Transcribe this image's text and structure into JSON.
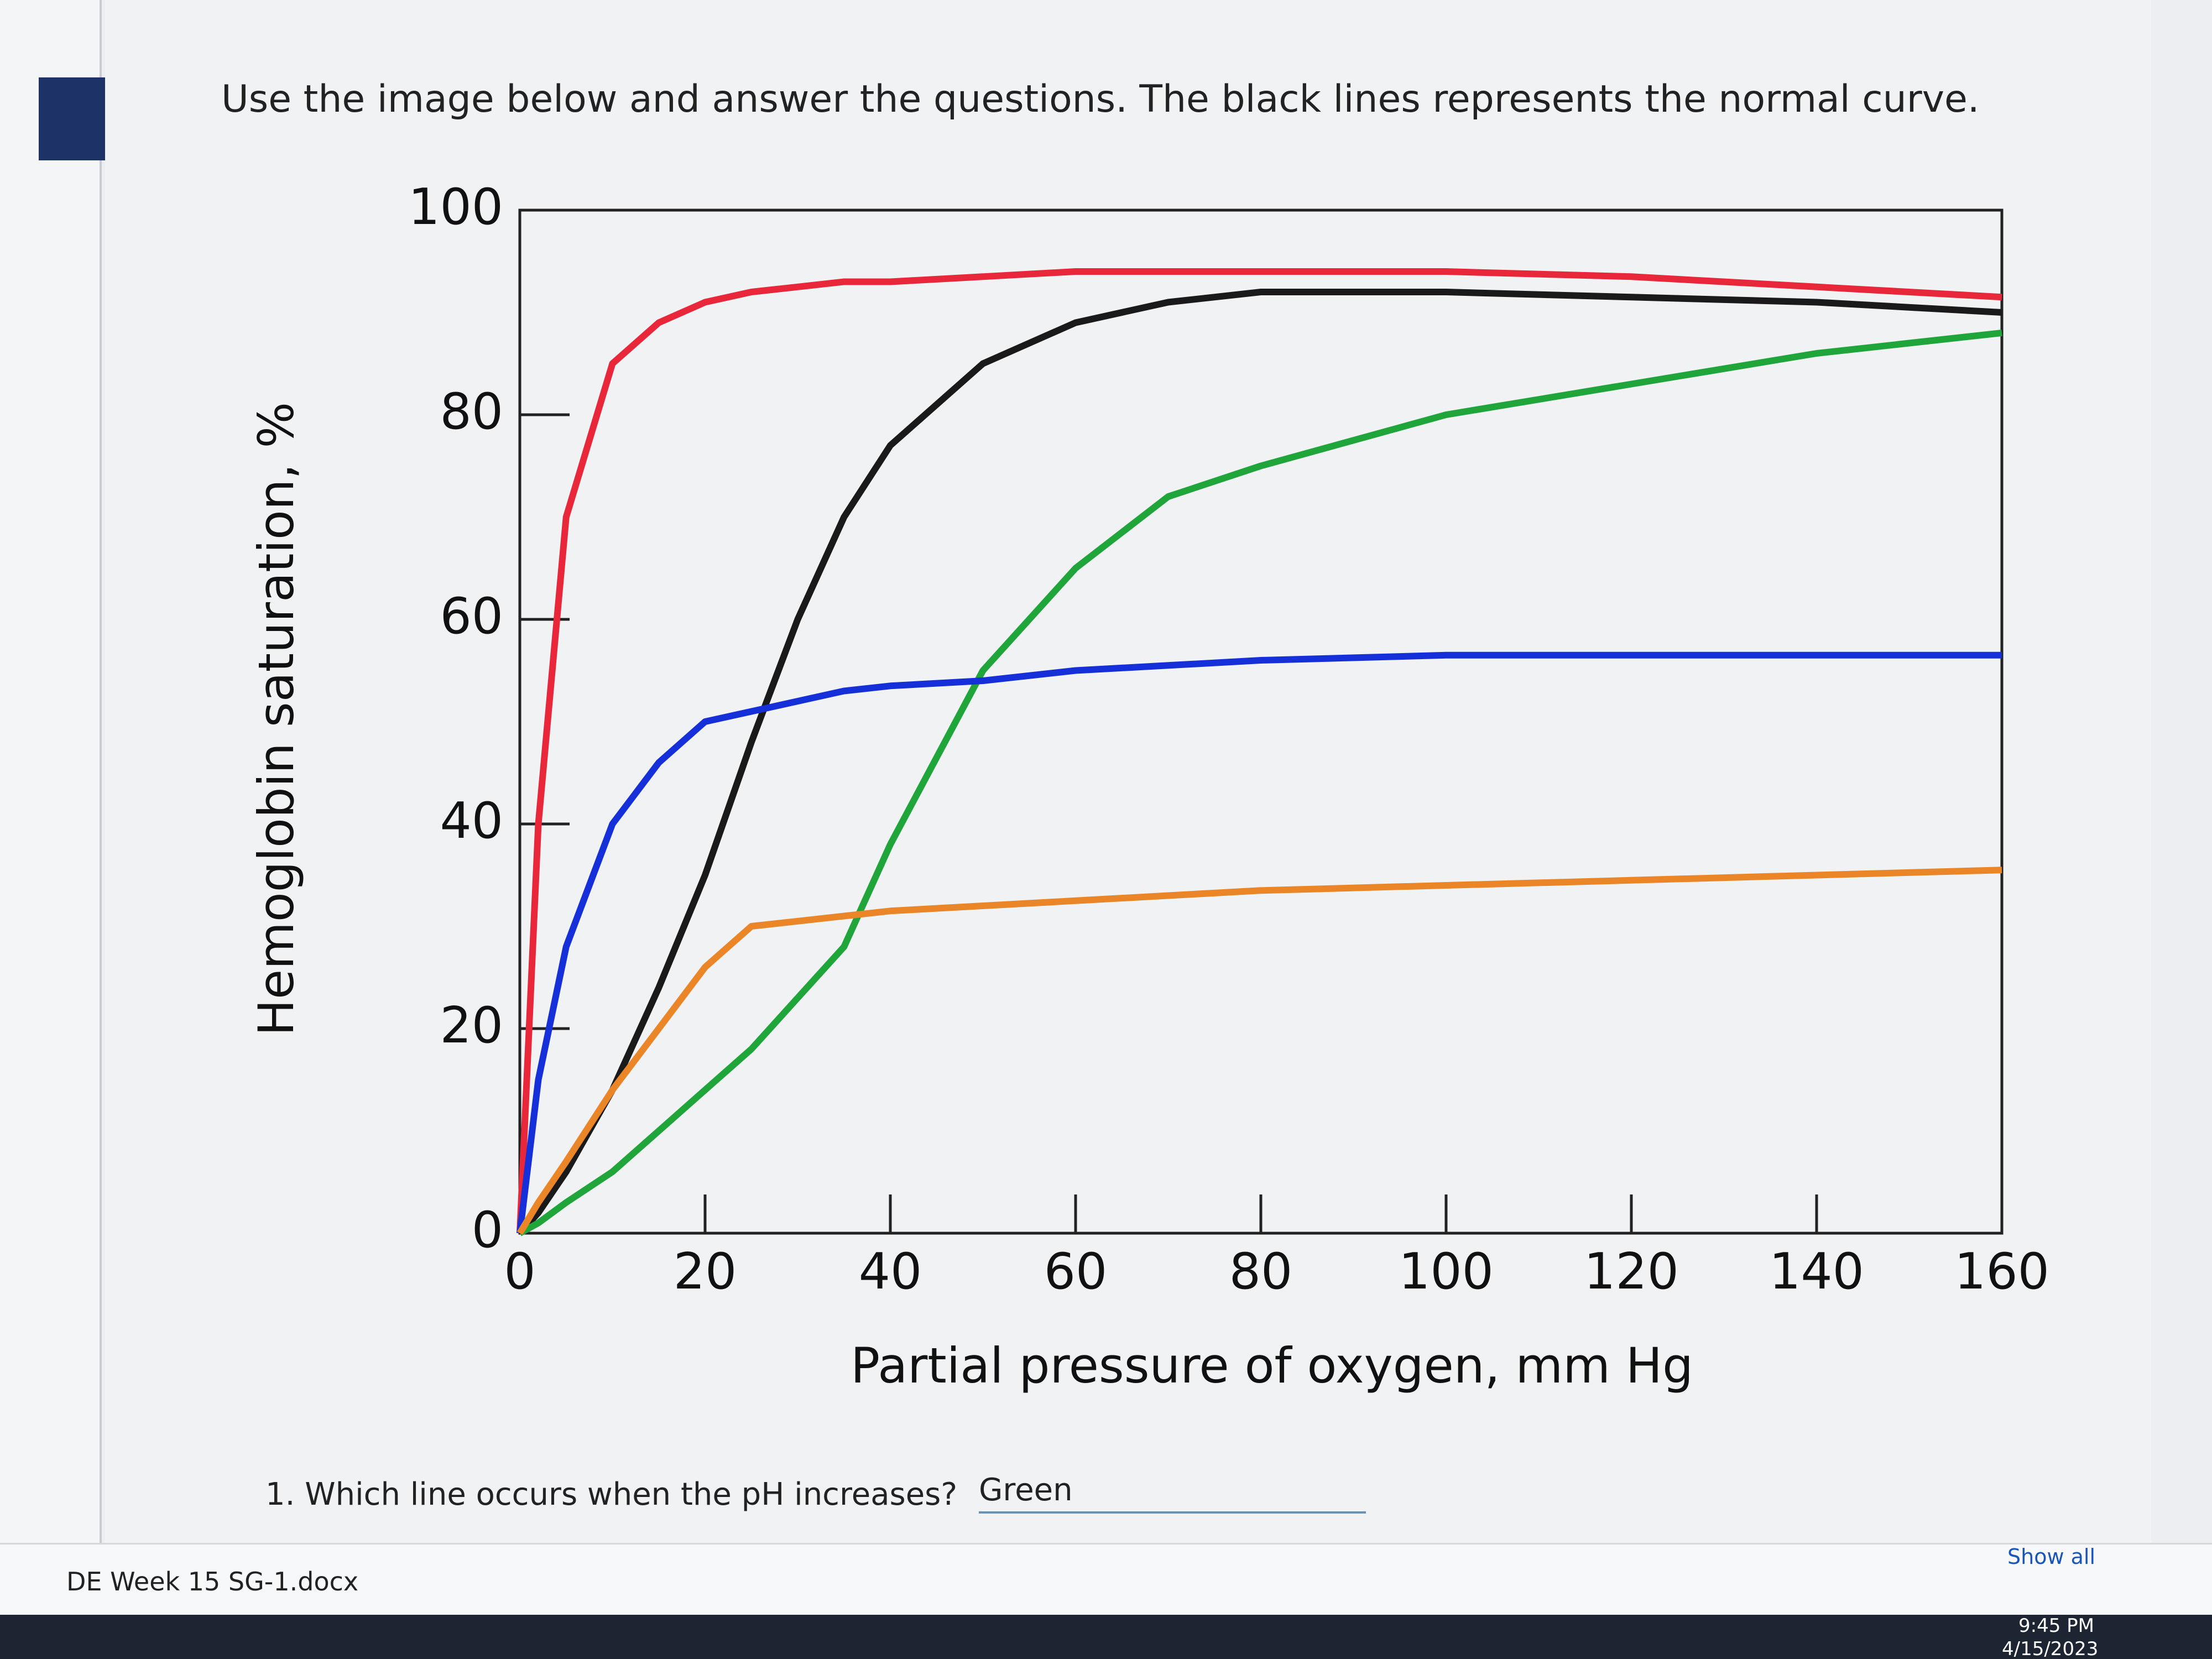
{
  "instruction": "Use the image below and answer the questions. The black lines represents the normal curve.",
  "chart_data": {
    "type": "line",
    "xlabel": "Partial pressure of oxygen, mm Hg",
    "ylabel": "Hemoglobin saturation, %",
    "x": [
      0,
      2,
      5,
      10,
      15,
      20,
      25,
      30,
      35,
      40,
      50,
      60,
      70,
      80,
      100,
      120,
      140,
      160
    ],
    "series": [
      {
        "color": "#e8283a",
        "values": [
          0,
          40,
          70,
          85,
          89,
          91,
          92,
          92.5,
          93,
          93,
          93.5,
          94,
          94,
          94,
          94,
          93.5,
          92.5,
          91.5
        ]
      },
      {
        "color": "#1a1a1a",
        "values": [
          0,
          2,
          6,
          14,
          24,
          35,
          48,
          60,
          70,
          77,
          85,
          89,
          91,
          92,
          92,
          91.5,
          91,
          90
        ]
      },
      {
        "color": "#1fa53a",
        "values": [
          0,
          1,
          3,
          6,
          10,
          14,
          18,
          23,
          28,
          38,
          55,
          65,
          72,
          75,
          80,
          83,
          86,
          88
        ]
      },
      {
        "color": "#1530d8",
        "values": [
          0,
          15,
          28,
          40,
          46,
          50,
          51,
          52,
          53,
          53.5,
          54,
          55,
          55.5,
          56,
          56.5,
          56.5,
          56.5,
          56.5
        ]
      },
      {
        "color": "#ea8628",
        "values": [
          0,
          3,
          7,
          14,
          20,
          26,
          30,
          30.5,
          31,
          31.5,
          32,
          32.5,
          33,
          33.5,
          34,
          34.5,
          35,
          35.5
        ]
      }
    ],
    "xlim": [
      0,
      160
    ],
    "ylim": [
      0,
      100
    ],
    "xticks": [
      0,
      20,
      40,
      60,
      80,
      100,
      120,
      140,
      160
    ],
    "yticks": [
      0,
      20,
      40,
      60,
      80,
      100
    ]
  },
  "question": {
    "text": "1. Which line occurs when the pH increases?",
    "answer": "Green"
  },
  "download_bar": {
    "file": "DE Week 15 SG-1.docx",
    "show_all": "Show all"
  },
  "taskbar": {
    "time": "9:45 PM",
    "date": "4/15/2023"
  }
}
